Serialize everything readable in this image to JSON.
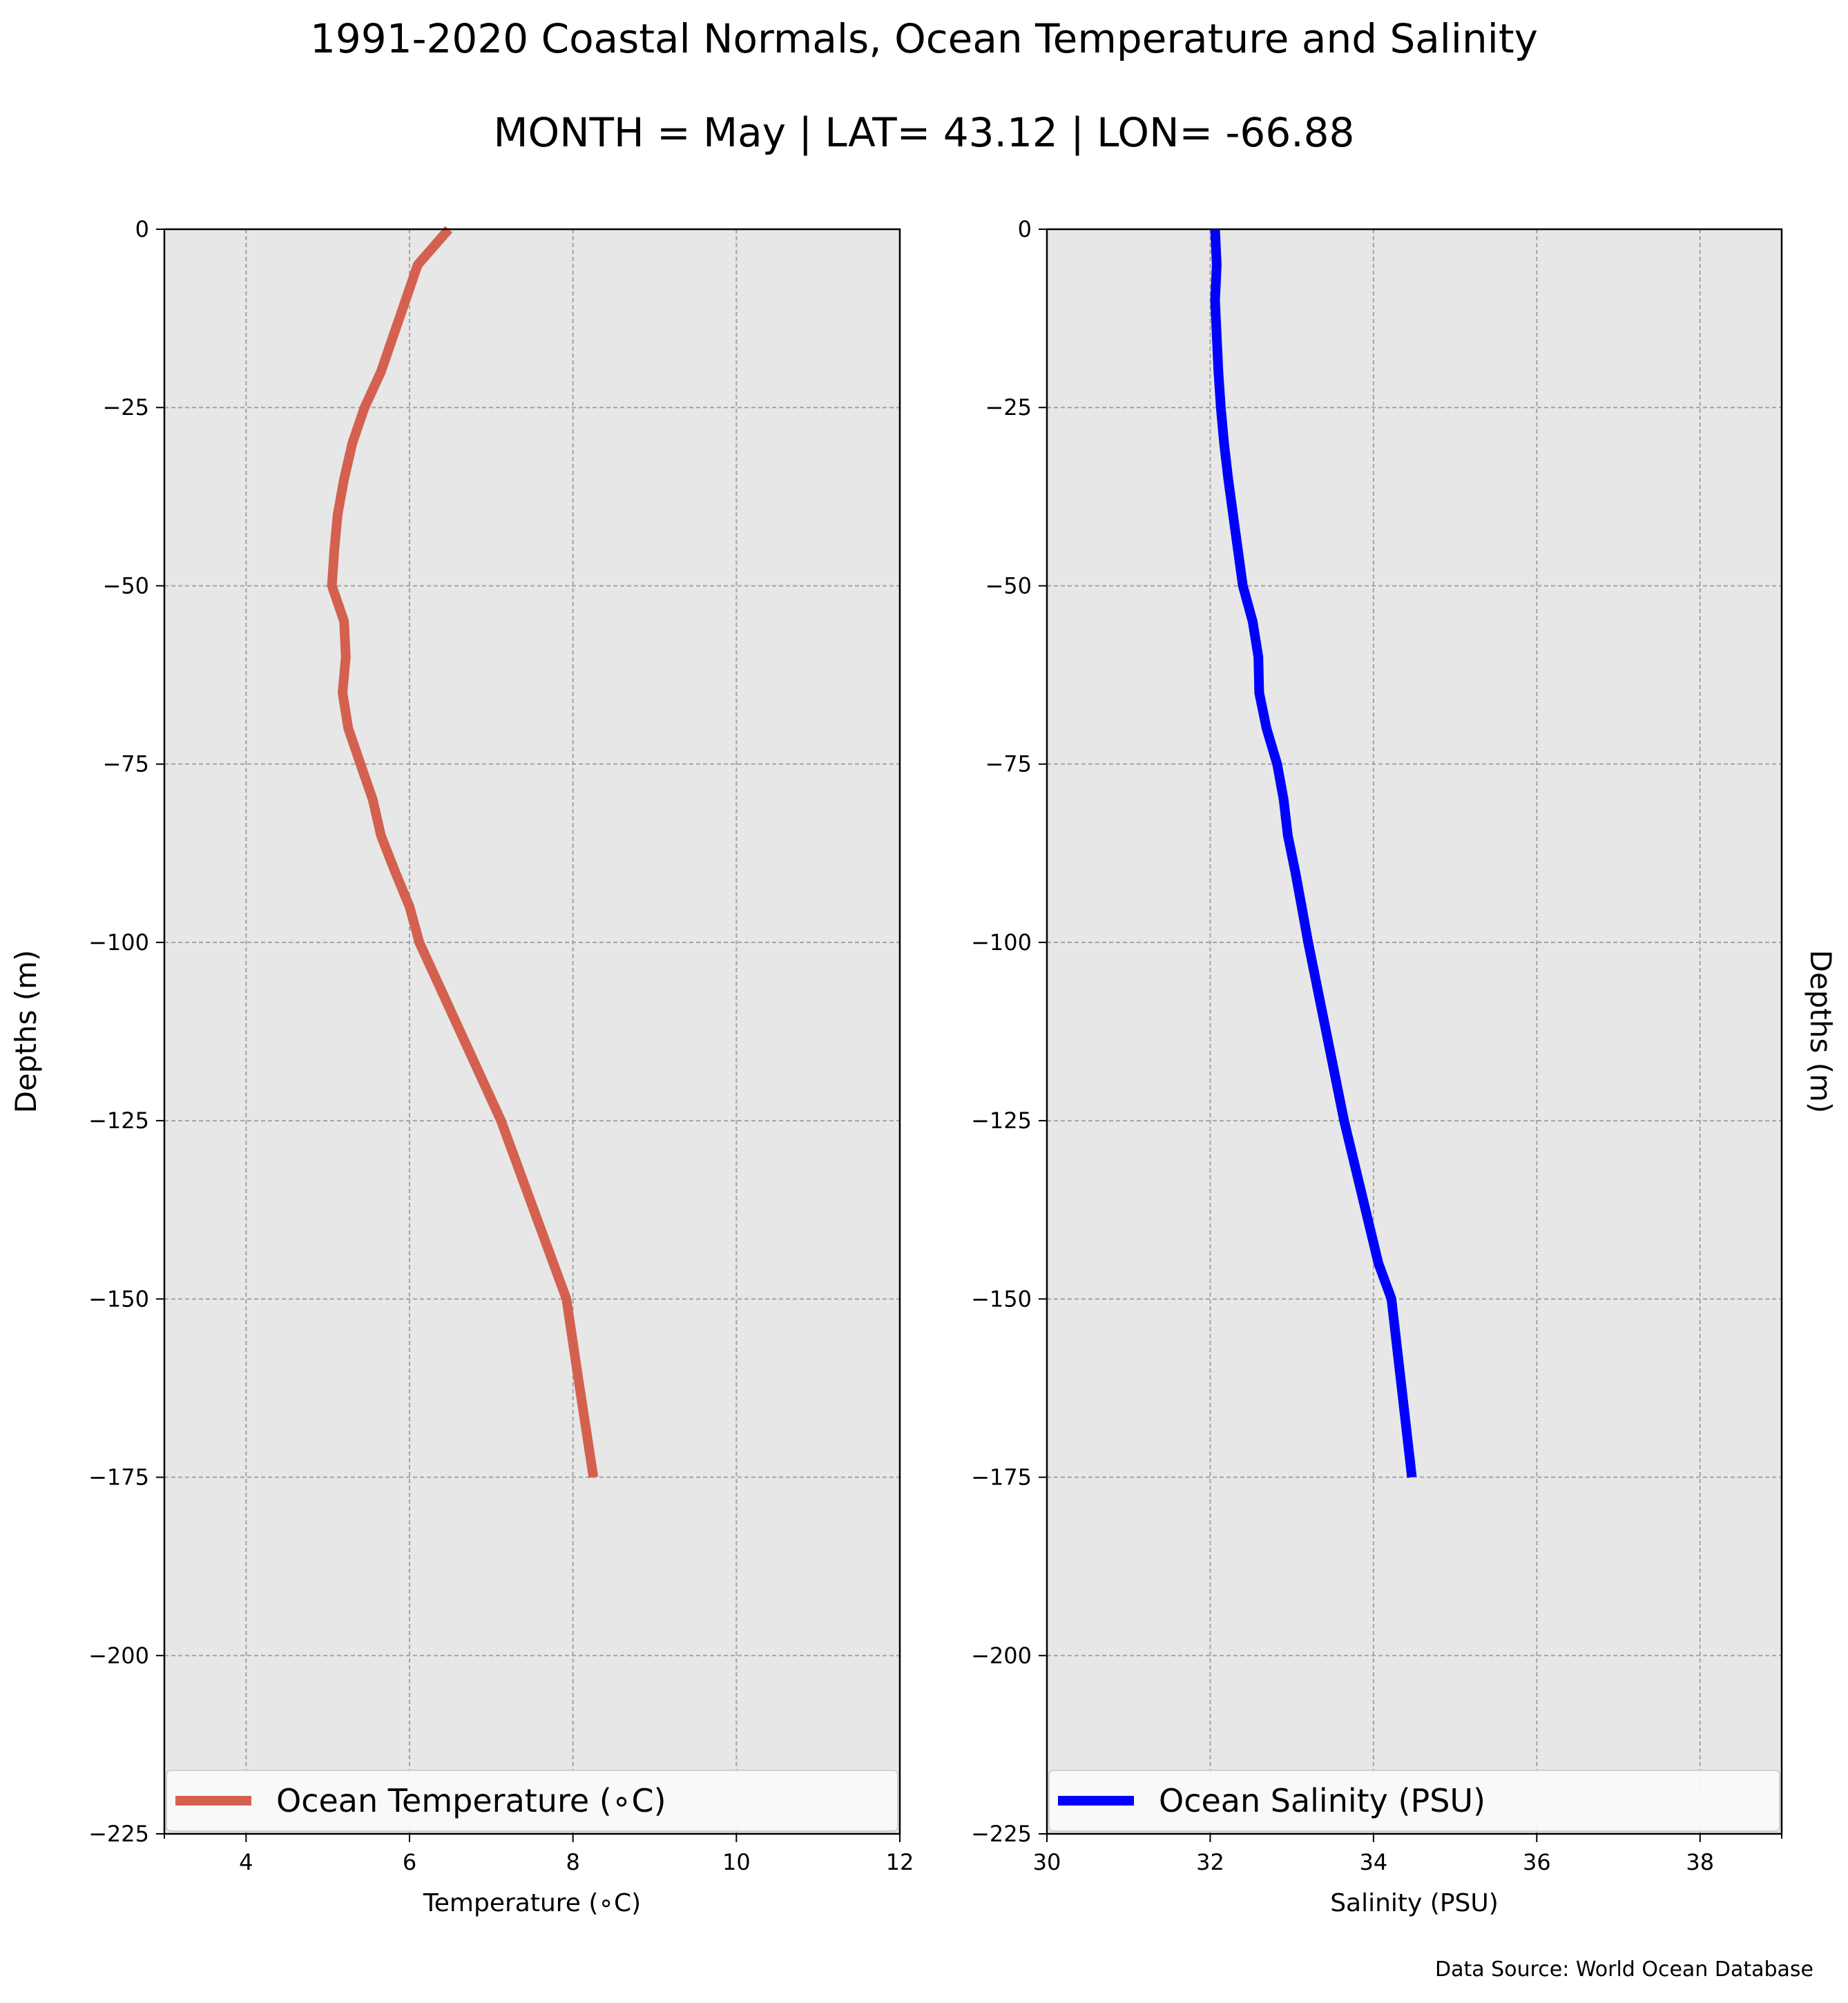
{
  "title": "1991-2020 Coastal Normals, Ocean Temperature and Salinity",
  "subtitle": "MONTH = May | LAT= 43.12 | LON= -66.88",
  "source_note": "Data Source: World Ocean Database",
  "chart_data": [
    {
      "type": "line",
      "xlabel": "Temperature (∘C)",
      "ylabel": "Depths (m)",
      "ylabel_side": "left",
      "xlim": [
        3,
        12
      ],
      "ylim": [
        -225,
        0
      ],
      "xticks": [
        4,
        6,
        8,
        10,
        12
      ],
      "yticks": [
        0,
        -25,
        -50,
        -75,
        -100,
        -125,
        -150,
        -175,
        -200,
        -225
      ],
      "grid": true,
      "legend": "lower-center",
      "color": "#d46150",
      "series": [
        {
          "name": "Ocean Temperature (∘C)",
          "x": [
            6.48,
            6.1,
            5.95,
            5.8,
            5.65,
            5.45,
            5.3,
            5.2,
            5.12,
            5.08,
            5.05,
            5.2,
            5.22,
            5.18,
            5.25,
            5.4,
            5.55,
            5.65,
            5.82,
            6.0,
            6.12,
            7.12,
            7.92,
            8.05,
            8.25
          ],
          "y": [
            0,
            -5,
            -10,
            -15,
            -20,
            -25,
            -30,
            -35,
            -40,
            -45,
            -50,
            -55,
            -60,
            -65,
            -70,
            -75,
            -80,
            -85,
            -90,
            -95,
            -100,
            -125,
            -150,
            -160,
            -175
          ]
        }
      ]
    },
    {
      "type": "line",
      "xlabel": "Salinity (PSU)",
      "ylabel": "Depths (m)",
      "ylabel_side": "right",
      "xlim": [
        30,
        39
      ],
      "ylim": [
        -225,
        0
      ],
      "xticks": [
        30,
        32,
        34,
        36,
        38
      ],
      "yticks": [
        0,
        -25,
        -50,
        -75,
        -100,
        -125,
        -150,
        -175,
        -200,
        -225
      ],
      "grid": true,
      "legend": "lower-center",
      "color": "#0000ff",
      "series": [
        {
          "name": "Ocean Salinity (PSU)",
          "x": [
            32.06,
            32.08,
            32.06,
            32.08,
            32.1,
            32.13,
            32.17,
            32.22,
            32.28,
            32.34,
            32.4,
            32.52,
            32.59,
            32.6,
            32.69,
            32.82,
            32.9,
            32.95,
            33.04,
            33.12,
            33.2,
            33.64,
            34.06,
            34.22,
            34.47
          ],
          "y": [
            0,
            -5,
            -10,
            -15,
            -20,
            -25,
            -30,
            -35,
            -40,
            -45,
            -50,
            -55,
            -60,
            -65,
            -70,
            -75,
            -80,
            -85,
            -90,
            -95,
            -100,
            -125,
            -145,
            -150,
            -175
          ]
        }
      ]
    }
  ]
}
